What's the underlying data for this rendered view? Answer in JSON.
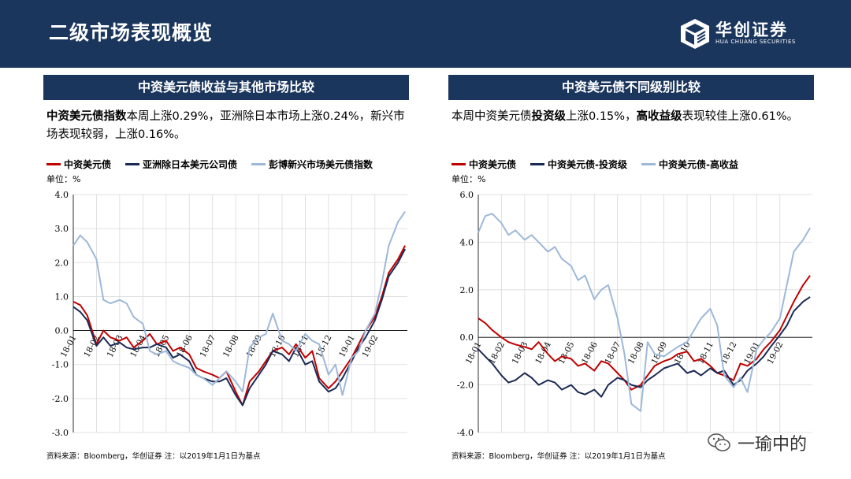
{
  "header": {
    "title": "二级市场表现概览",
    "logo_main": "华创证券",
    "logo_sub": "HUA CHUANG SECURITIES"
  },
  "watermark": {
    "text": "一瑜中的"
  },
  "panels": [
    {
      "title": "中资美元债收益与其他市场比较",
      "desc_bold1": "中资美元债指数",
      "desc_rest1": "本周上涨0.29%，亚洲除日本市场上涨0.24%，新兴市场表现较弱，上涨0.16%。",
      "unit": "单位：%",
      "source": "资料来源：Bloomberg，华创证券   注：以2019年1月1日为基点"
    },
    {
      "title": "中资美元债不同级别比较",
      "desc_pre": "本周中资美元债",
      "desc_bold1": "投资级",
      "desc_mid": "上涨0.15%，",
      "desc_bold2": "高收益级",
      "desc_post": "表现较佳上涨0.61%。",
      "unit": "单位：%",
      "source": "资料来源：Bloomberg，华创证券   注：以2019年1月1日为基点"
    }
  ],
  "chart_data": [
    {
      "type": "line",
      "ylim": [
        -3.0,
        4.0
      ],
      "yticks": [
        "4.0",
        "3.0",
        "2.0",
        "1.0",
        "0.0",
        "-1.0",
        "-2.0",
        "-3.0"
      ],
      "yticks_num": [
        4,
        3,
        2,
        1,
        0,
        -1,
        -2,
        -3
      ],
      "xticks": [
        "18-01",
        "18-02",
        "18-03",
        "18-04",
        "18-05",
        "18-06",
        "18-07",
        "18-08",
        "18-09",
        "18-10",
        "18-11",
        "18-12",
        "19-01",
        "19-02"
      ],
      "xpos": [
        0,
        0.3,
        0.6,
        1,
        1.3,
        1.6,
        2,
        2.3,
        2.6,
        3,
        3.3,
        3.6,
        4,
        4.3,
        4.6,
        5,
        5.3,
        5.6,
        6,
        6.3,
        6.6,
        7,
        7.3,
        7.6,
        8,
        8.3,
        8.6,
        9,
        9.3,
        9.6,
        10,
        10.3,
        10.6,
        11,
        11.3,
        11.6,
        12,
        12.3,
        12.6,
        13,
        13.3,
        13.6,
        14,
        14.3
      ],
      "series": [
        {
          "name": "中资美元债",
          "color": "#c00000",
          "values": [
            0.85,
            0.75,
            0.45,
            -0.4,
            0.0,
            -0.2,
            -0.3,
            -0.2,
            -0.5,
            -0.3,
            -0.1,
            -0.4,
            -0.3,
            -0.6,
            -0.5,
            -0.7,
            -1.1,
            -1.2,
            -1.3,
            -1.4,
            -1.2,
            -1.8,
            -2.2,
            -1.5,
            -1.2,
            -0.9,
            -0.6,
            -0.5,
            -0.7,
            -0.4,
            -0.8,
            -0.6,
            -1.4,
            -1.7,
            -1.5,
            -1.2,
            -0.8,
            -0.4,
            0.0,
            0.4,
            1.0,
            1.7,
            2.1,
            2.5
          ]
        },
        {
          "name": "亚洲除日本美元公司债",
          "color": "#1b2a55",
          "values": [
            0.7,
            0.55,
            0.3,
            -0.45,
            -0.2,
            -0.45,
            -0.35,
            -0.5,
            -0.55,
            -0.5,
            -0.5,
            -0.4,
            -0.5,
            -0.8,
            -0.7,
            -0.9,
            -1.3,
            -1.4,
            -1.5,
            -1.5,
            -1.4,
            -1.9,
            -2.2,
            -1.7,
            -1.3,
            -1.0,
            -0.6,
            -0.7,
            -0.9,
            -0.5,
            -1.0,
            -0.9,
            -1.5,
            -1.8,
            -1.7,
            -1.4,
            -0.9,
            -0.5,
            -0.2,
            0.3,
            0.9,
            1.6,
            2.0,
            2.4
          ]
        },
        {
          "name": "彭博新兴市场美元债指数",
          "color": "#9db8d9",
          "values": [
            2.5,
            2.8,
            2.6,
            2.1,
            0.9,
            0.8,
            0.9,
            0.8,
            0.4,
            0.2,
            -0.6,
            -0.7,
            -0.6,
            -0.9,
            -1.0,
            -1.1,
            -1.3,
            -1.4,
            -1.6,
            -1.4,
            -1.2,
            -1.5,
            -1.8,
            -0.5,
            -0.2,
            -0.1,
            0.5,
            -0.3,
            -0.4,
            -0.6,
            -0.1,
            -0.3,
            -0.4,
            -1.3,
            -1.0,
            -1.9,
            -0.8,
            -0.6,
            0.0,
            0.5,
            1.4,
            2.5,
            3.2,
            3.5
          ]
        }
      ]
    },
    {
      "type": "line",
      "ylim": [
        -4.0,
        6.0
      ],
      "yticks": [
        "6.0",
        "4.0",
        "2.0",
        "0.0",
        "-2.0",
        "-4.0"
      ],
      "yticks_num": [
        6,
        4,
        2,
        0,
        -2,
        -4
      ],
      "xticks": [
        "18-01",
        "18-02",
        "18-03",
        "18-04",
        "18-05",
        "18-06",
        "18-07",
        "18-08",
        "18-09",
        "18-10",
        "18-11",
        "18-12",
        "19-01",
        "19-02"
      ],
      "xpos": [
        0,
        0.3,
        0.6,
        1,
        1.3,
        1.6,
        2,
        2.3,
        2.6,
        3,
        3.3,
        3.6,
        4,
        4.3,
        4.6,
        5,
        5.3,
        5.6,
        6,
        6.3,
        6.6,
        7,
        7.3,
        7.6,
        8,
        8.3,
        8.6,
        9,
        9.3,
        9.6,
        10,
        10.3,
        10.6,
        11,
        11.3,
        11.6,
        12,
        12.3,
        12.6,
        13,
        13.3,
        13.6,
        14,
        14.3
      ],
      "series": [
        {
          "name": "中资美元债",
          "color": "#c00000",
          "values": [
            0.8,
            0.6,
            0.3,
            0.0,
            -0.2,
            -0.3,
            -0.4,
            -0.5,
            -0.2,
            -0.7,
            -1.0,
            -0.8,
            -0.9,
            -1.2,
            -1.1,
            -1.4,
            -1.0,
            -1.1,
            -1.5,
            -1.8,
            -2.2,
            -2.0,
            -1.6,
            -1.2,
            -1.0,
            -0.9,
            -0.7,
            -0.6,
            -1.0,
            -0.9,
            -1.2,
            -1.5,
            -1.6,
            -1.8,
            -1.1,
            -1.2,
            -0.9,
            -0.5,
            -0.2,
            0.3,
            0.9,
            1.5,
            2.2,
            2.6
          ]
        },
        {
          "name": "中资美元债-投资级",
          "color": "#1b2a55",
          "values": [
            -0.5,
            -0.8,
            -1.1,
            -1.6,
            -1.9,
            -1.8,
            -1.5,
            -1.7,
            -2.0,
            -1.8,
            -1.9,
            -2.2,
            -2.0,
            -2.3,
            -2.4,
            -2.2,
            -2.5,
            -2.0,
            -1.7,
            -1.8,
            -2.0,
            -2.1,
            -1.8,
            -1.6,
            -1.3,
            -1.2,
            -1.1,
            -1.5,
            -1.4,
            -1.6,
            -1.3,
            -1.5,
            -1.4,
            -2.0,
            -1.8,
            -1.4,
            -1.1,
            -0.8,
            -0.4,
            0.1,
            0.5,
            1.1,
            1.5,
            1.7
          ]
        },
        {
          "name": "中资美元债-高收益",
          "color": "#9db8d9",
          "values": [
            4.4,
            5.1,
            5.2,
            4.8,
            4.3,
            4.5,
            4.1,
            4.3,
            4.0,
            3.6,
            3.8,
            3.3,
            3.0,
            2.4,
            2.6,
            1.6,
            2.0,
            2.2,
            0.8,
            -0.7,
            -2.8,
            -3.1,
            -0.2,
            -0.7,
            -0.8,
            -0.6,
            -0.4,
            -0.2,
            0.3,
            0.8,
            1.2,
            0.5,
            -1.6,
            -2.1,
            -1.7,
            -2.3,
            -0.5,
            -0.1,
            0.2,
            0.8,
            2.2,
            3.6,
            4.1,
            4.6
          ]
        }
      ]
    }
  ]
}
